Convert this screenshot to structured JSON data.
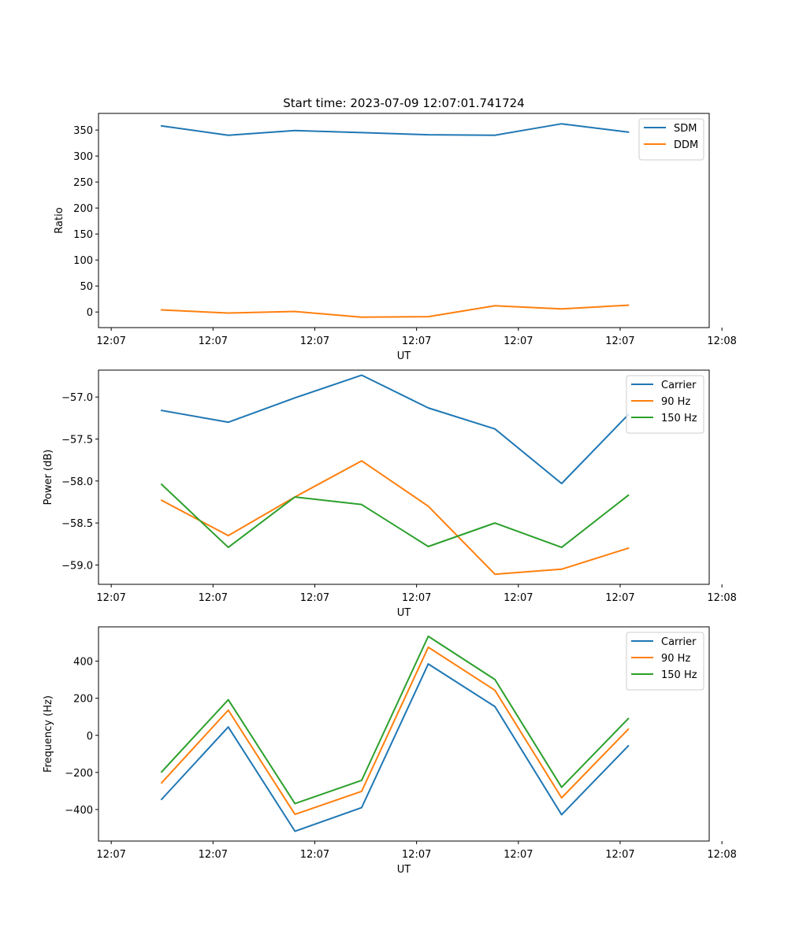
{
  "figure": {
    "title": "Start time: 2023-07-09 12:07:01.741724"
  },
  "chart_data": [
    {
      "type": "line",
      "name": "ratio",
      "title": "Start time: 2023-07-09 12:07:01.741724",
      "xlabel": "UT",
      "ylabel": "Ratio",
      "xlim": [
        0,
        12
      ],
      "ylim": [
        -30,
        382
      ],
      "x_ticks": [
        0.25,
        2.25,
        4.25,
        6.25,
        8.25,
        10.25,
        12.25
      ],
      "x_tick_labels": [
        "12:07",
        "12:07",
        "12:07",
        "12:07",
        "12:07",
        "12:07",
        "12:08"
      ],
      "y_ticks": [
        0,
        50,
        100,
        150,
        200,
        250,
        300,
        350
      ],
      "y_tick_labels": [
        "0",
        "50",
        "100",
        "150",
        "200",
        "250",
        "300",
        "350"
      ],
      "grid": false,
      "legend_position": "top-right",
      "x": [
        1.24,
        2.55,
        3.86,
        5.17,
        6.48,
        7.79,
        9.1,
        10.41
      ],
      "series": [
        {
          "name": "SDM",
          "color": "#1f77b4",
          "values": [
            358,
            340,
            349,
            345,
            341,
            340,
            362,
            346
          ]
        },
        {
          "name": "DDM",
          "color": "#ff7f0e",
          "values": [
            4,
            -2,
            1,
            -10,
            -9,
            12,
            6,
            13
          ]
        }
      ]
    },
    {
      "type": "line",
      "name": "power",
      "title": "",
      "xlabel": "UT",
      "ylabel": "Power (dB)",
      "xlim": [
        0,
        12
      ],
      "ylim": [
        -59.23,
        -56.68
      ],
      "x_ticks": [
        0.25,
        2.25,
        4.25,
        6.25,
        8.25,
        10.25,
        12.25
      ],
      "x_tick_labels": [
        "12:07",
        "12:07",
        "12:07",
        "12:07",
        "12:07",
        "12:07",
        "12:08"
      ],
      "y_ticks": [
        -59.0,
        -58.5,
        -58.0,
        -57.5,
        -57.0
      ],
      "y_tick_labels": [
        "−59.0",
        "−58.5",
        "−58.0",
        "−57.5",
        "−57.0"
      ],
      "grid": false,
      "legend_position": "top-right",
      "x": [
        1.24,
        2.55,
        3.86,
        5.17,
        6.48,
        7.79,
        9.1,
        10.41
      ],
      "series": [
        {
          "name": "Carrier",
          "color": "#1f77b4",
          "values": [
            -57.16,
            -57.3,
            -57.01,
            -56.74,
            -57.13,
            -57.38,
            -58.03,
            -57.21
          ]
        },
        {
          "name": "90 Hz",
          "color": "#ff7f0e",
          "values": [
            -58.23,
            -58.65,
            -58.19,
            -57.76,
            -58.3,
            -59.11,
            -59.05,
            -58.8
          ]
        },
        {
          "name": "150 Hz",
          "color": "#2ca02c",
          "values": [
            -58.04,
            -58.79,
            -58.19,
            -58.28,
            -58.78,
            -58.5,
            -58.79,
            -58.17
          ]
        }
      ]
    },
    {
      "type": "line",
      "name": "frequency",
      "title": "",
      "xlabel": "UT",
      "ylabel": "Frequency (Hz)",
      "xlim": [
        0,
        12
      ],
      "ylim": [
        -570,
        585
      ],
      "x_ticks": [
        0.25,
        2.25,
        4.25,
        6.25,
        8.25,
        10.25,
        12.25
      ],
      "x_tick_labels": [
        "12:07",
        "12:07",
        "12:07",
        "12:07",
        "12:07",
        "12:07",
        "12:08"
      ],
      "y_ticks": [
        -400,
        -200,
        0,
        200,
        400
      ],
      "y_tick_labels": [
        "−400",
        "−200",
        "0",
        "200",
        "400"
      ],
      "grid": false,
      "legend_position": "top-right",
      "x": [
        1.24,
        2.55,
        3.86,
        5.17,
        6.48,
        7.79,
        9.1,
        10.41
      ],
      "series": [
        {
          "name": "Carrier",
          "color": "#1f77b4",
          "values": [
            -345,
            45,
            -517,
            -390,
            385,
            155,
            -428,
            -57
          ]
        },
        {
          "name": "90 Hz",
          "color": "#ff7f0e",
          "values": [
            -256,
            136,
            -426,
            -302,
            475,
            243,
            -337,
            33
          ]
        },
        {
          "name": "150 Hz",
          "color": "#2ca02c",
          "values": [
            -197,
            192,
            -368,
            -243,
            534,
            301,
            -280,
            90
          ]
        }
      ]
    }
  ]
}
